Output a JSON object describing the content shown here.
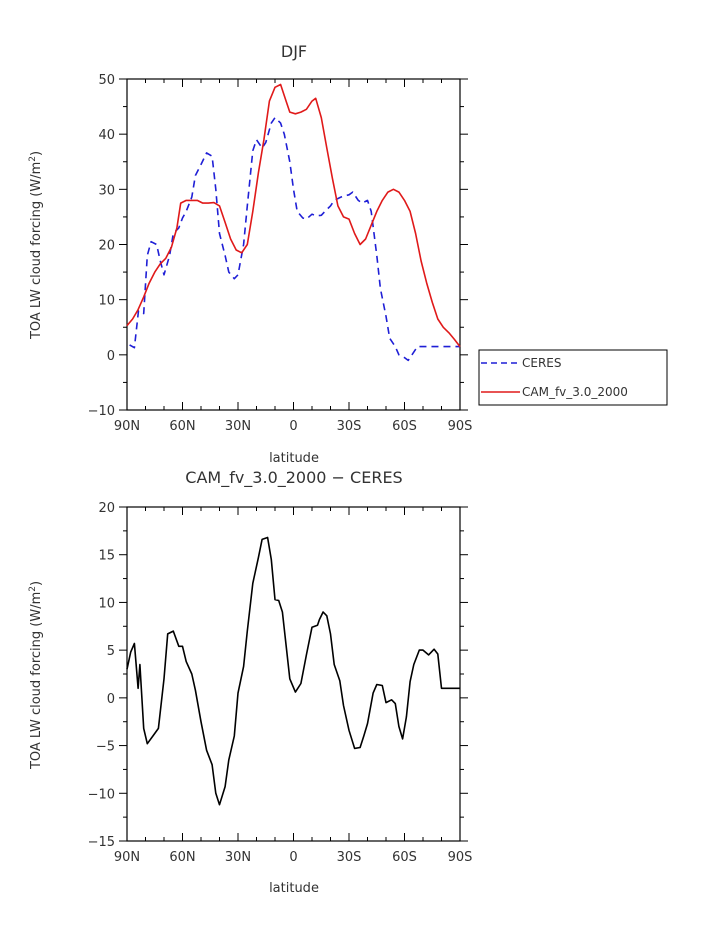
{
  "chart_data": [
    {
      "type": "line",
      "title": "DJF",
      "xlabel": "latitude",
      "ylabel": "TOA LW cloud forcing (W/m²)",
      "ylabel_main": "TOA LW cloud forcing (W/m",
      "ylabel_sup": "2",
      "ylabel_end": ")",
      "xlim": [
        -90,
        90
      ],
      "ylim": [
        -10,
        50
      ],
      "xticks": [
        -90,
        -60,
        -30,
        0,
        30,
        60,
        90
      ],
      "xtick_labels": [
        "90N",
        "60N",
        "30N",
        "0",
        "30S",
        "60S",
        "90S"
      ],
      "yticks": [
        -10,
        0,
        10,
        20,
        30,
        40,
        50
      ],
      "ytick_labels": [
        "−10",
        "0",
        "10",
        "20",
        "30",
        "40",
        "50"
      ],
      "legend_position": "right-lower-outside",
      "series": [
        {
          "name": "CERES",
          "color": "#1f1fd6",
          "style": "dashed",
          "x": [
            -88.6,
            -86,
            -83.8,
            -81,
            -79,
            -77,
            -74,
            -72,
            -70,
            -67,
            -65,
            -62,
            -60,
            -58,
            -55,
            -53,
            -50,
            -47,
            -44,
            -42,
            -40,
            -37,
            -35,
            -32,
            -30,
            -27,
            -25,
            -22,
            -20,
            -17,
            -15,
            -12,
            -10,
            -7,
            -5,
            -2,
            0,
            2,
            5,
            7,
            10,
            12,
            15,
            17,
            20,
            22,
            25,
            27,
            30,
            32,
            35,
            37,
            40,
            42,
            45,
            47,
            50,
            52,
            55,
            57,
            60,
            62,
            65,
            67,
            70,
            72,
            75,
            77,
            80,
            82,
            84,
            86,
            88,
            90
          ],
          "values": [
            1.8,
            1.3,
            8,
            7.5,
            18,
            20.5,
            20,
            17,
            14.5,
            18,
            22,
            23,
            24.8,
            26,
            28.6,
            32.5,
            34.5,
            36.6,
            36,
            30,
            22,
            18,
            15,
            13.8,
            14.5,
            20,
            27,
            37,
            39,
            37.5,
            38.5,
            42,
            43,
            42,
            40,
            35,
            30,
            26,
            24.8,
            24.6,
            25.5,
            25.2,
            25.3,
            26,
            27,
            28,
            28.5,
            28.8,
            29,
            29.5,
            28,
            27.5,
            28,
            26,
            18,
            12,
            7,
            3,
            1.5,
            0,
            -0.5,
            -1,
            0.5,
            1.5,
            1.5,
            1.5,
            1.5,
            1.5,
            1.5,
            1.5,
            1.5,
            1.5,
            1.5,
            1.5
          ]
        },
        {
          "name": "CAM_fv_3.0_2000",
          "color": "#e01a1a",
          "style": "solid",
          "x": [
            -90,
            -87,
            -84,
            -81,
            -78,
            -75,
            -72,
            -69,
            -66,
            -63,
            -61,
            -58,
            -55,
            -52,
            -49,
            -46,
            -43,
            -40,
            -37,
            -34,
            -31,
            -28,
            -25,
            -22,
            -19,
            -16,
            -13,
            -10,
            -7,
            -4,
            -2,
            1,
            4,
            7,
            10,
            12,
            15,
            18,
            21,
            24,
            27,
            30,
            33,
            36,
            39,
            42,
            45,
            48,
            51,
            54,
            57,
            60,
            63,
            66,
            69,
            72,
            75,
            78,
            81,
            84,
            87,
            90
          ],
          "values": [
            5.3,
            6.5,
            8.2,
            10.5,
            13,
            15,
            16.5,
            17.5,
            19.5,
            23,
            27.5,
            28,
            28,
            28,
            27.5,
            27.5,
            27.6,
            27,
            24,
            21,
            19,
            18.5,
            20,
            26,
            33,
            39,
            46,
            48.5,
            49,
            46,
            44,
            43.7,
            44,
            44.5,
            46,
            46.5,
            43,
            37.5,
            32,
            27,
            25,
            24.6,
            22,
            20,
            21,
            23.5,
            26,
            28,
            29.5,
            30,
            29.5,
            28,
            26,
            22,
            17,
            13,
            9.5,
            6.5,
            5,
            4,
            2.8,
            1.5
          ]
        }
      ]
    },
    {
      "type": "line",
      "title": "CAM_fv_3.0_2000 − CERES",
      "xlabel": "latitude",
      "ylabel": "TOA LW cloud forcing (W/m²)",
      "ylabel_main": "TOA LW cloud forcing (W/m",
      "ylabel_sup": "2",
      "ylabel_end": ")",
      "xlim": [
        -90,
        90
      ],
      "ylim": [
        -15,
        20
      ],
      "xticks": [
        -90,
        -60,
        -30,
        0,
        30,
        60,
        90
      ],
      "xtick_labels": [
        "90N",
        "60N",
        "30N",
        "0",
        "30S",
        "60S",
        "90S"
      ],
      "yticks": [
        -15,
        -10,
        -5,
        0,
        5,
        10,
        15,
        20
      ],
      "ytick_labels": [
        "−15",
        "−10",
        "−5",
        "0",
        "5",
        "10",
        "15",
        "20"
      ],
      "series": [
        {
          "name": "CAM_fv_3.0_2000 − CERES",
          "color": "#000000",
          "style": "solid",
          "x": [
            -90,
            -88,
            -86,
            -84,
            -83,
            -81,
            -79,
            -76,
            -73,
            -70,
            -68,
            -65,
            -62,
            -60,
            -58,
            -55,
            -53,
            -50,
            -47,
            -44,
            -42,
            -40,
            -37,
            -35,
            -32,
            -30,
            -27,
            -25,
            -22,
            -19,
            -17,
            -14,
            -12,
            -10,
            -8,
            -6,
            -4,
            -2,
            1,
            4,
            7,
            10,
            13,
            14,
            16,
            18,
            20,
            22,
            25,
            27,
            30,
            33,
            36,
            38,
            40,
            43,
            45,
            48,
            50,
            53,
            55,
            57,
            59,
            61,
            63,
            65,
            68,
            70,
            73,
            76,
            78,
            80,
            82,
            84,
            86,
            88,
            90
          ],
          "values": [
            3,
            4.8,
            5.7,
            1,
            3.5,
            -3.2,
            -4.8,
            -4,
            -3.2,
            2,
            6.7,
            7,
            5.4,
            5.4,
            3.8,
            2.5,
            0.8,
            -2.5,
            -5.5,
            -7,
            -10,
            -11.2,
            -9.3,
            -6.5,
            -4,
            0.5,
            3.3,
            7,
            12,
            14.7,
            16.6,
            16.8,
            14.5,
            10.3,
            10.2,
            9,
            5.5,
            2,
            0.6,
            1.5,
            4.5,
            7.4,
            7.6,
            8.2,
            9,
            8.6,
            6.7,
            3.5,
            1.8,
            -0.8,
            -3.4,
            -5.3,
            -5.2,
            -4,
            -2.7,
            0.5,
            1.4,
            1.3,
            -0.5,
            -0.2,
            -0.6,
            -3,
            -4.3,
            -2,
            1.7,
            3.5,
            5,
            5,
            4.5,
            5.1,
            4.6,
            1,
            1,
            1,
            1,
            1,
            1
          ]
        }
      ]
    }
  ]
}
